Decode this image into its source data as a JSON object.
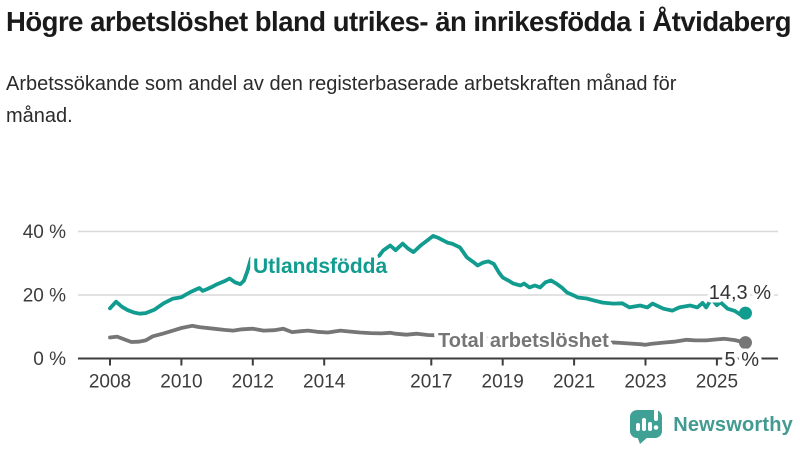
{
  "chart_data": {
    "type": "line",
    "title": "Högre arbetslöshet bland utrikes- än inrikesfödda i Åtvidaberg",
    "subtitle": "Arbetssökande som andel av den registerbaserade arbetskraften månad för månad.",
    "x": {
      "ticks": [
        2008,
        2010,
        2012,
        2014,
        2017,
        2019,
        2021,
        2023,
        2025
      ],
      "range": [
        2007.1,
        2026.7
      ],
      "unit": "year"
    },
    "y": {
      "ticks": [
        0,
        20,
        40
      ],
      "tick_labels": [
        "0 %",
        "20 %",
        "40 %"
      ],
      "range": [
        0,
        44
      ],
      "grid": true,
      "unit": "percent"
    },
    "legend_position": "inline-series-labels",
    "series": [
      {
        "name": "Utlandsfödda",
        "color": "#119c8f",
        "end_label": "14,3 %",
        "end_value": 14.3,
        "points": [
          [
            2008.0,
            15.8
          ],
          [
            2008.17,
            17.9
          ],
          [
            2008.33,
            16.3
          ],
          [
            2008.5,
            15.2
          ],
          [
            2008.67,
            14.5
          ],
          [
            2008.83,
            14.1
          ],
          [
            2009.0,
            14.3
          ],
          [
            2009.25,
            15.4
          ],
          [
            2009.5,
            17.4
          ],
          [
            2009.75,
            18.8
          ],
          [
            2010.0,
            19.3
          ],
          [
            2010.25,
            20.9
          ],
          [
            2010.5,
            22.2
          ],
          [
            2010.6,
            21.3
          ],
          [
            2010.75,
            22.0
          ],
          [
            2010.9,
            22.8
          ],
          [
            2011.0,
            23.4
          ],
          [
            2011.2,
            24.3
          ],
          [
            2011.35,
            25.2
          ],
          [
            2011.5,
            24.0
          ],
          [
            2011.65,
            23.4
          ],
          [
            2011.75,
            24.5
          ],
          [
            2011.85,
            27.5
          ],
          [
            2011.95,
            31.5
          ],
          [
            2012.1,
            31.4
          ],
          [
            2012.3,
            30.3
          ],
          [
            2012.5,
            29.4
          ],
          [
            2012.7,
            30.1
          ],
          [
            2012.9,
            30.9
          ],
          [
            2013.1,
            30.2
          ],
          [
            2013.3,
            29.2
          ],
          [
            2013.5,
            28.7
          ],
          [
            2013.7,
            29.4
          ],
          [
            2013.9,
            30.1
          ],
          [
            2014.1,
            29.5
          ],
          [
            2014.3,
            28.9
          ],
          [
            2014.5,
            29.6
          ],
          [
            2014.7,
            30.3
          ],
          [
            2014.9,
            29.8
          ],
          [
            2015.1,
            30.4
          ],
          [
            2015.3,
            31.0
          ],
          [
            2015.5,
            31.8
          ],
          [
            2015.65,
            34.0
          ],
          [
            2015.85,
            35.6
          ],
          [
            2016.0,
            34.1
          ],
          [
            2016.2,
            36.2
          ],
          [
            2016.35,
            34.6
          ],
          [
            2016.5,
            33.5
          ],
          [
            2016.7,
            35.6
          ],
          [
            2016.9,
            37.3
          ],
          [
            2017.05,
            38.6
          ],
          [
            2017.2,
            38.0
          ],
          [
            2017.45,
            36.5
          ],
          [
            2017.6,
            36.1
          ],
          [
            2017.8,
            35.0
          ],
          [
            2018.0,
            31.8
          ],
          [
            2018.2,
            30.2
          ],
          [
            2018.3,
            29.3
          ],
          [
            2018.45,
            30.2
          ],
          [
            2018.6,
            30.6
          ],
          [
            2018.75,
            29.8
          ],
          [
            2018.9,
            27.0
          ],
          [
            2019.0,
            25.5
          ],
          [
            2019.15,
            24.6
          ],
          [
            2019.3,
            23.6
          ],
          [
            2019.5,
            23.0
          ],
          [
            2019.6,
            23.6
          ],
          [
            2019.75,
            22.4
          ],
          [
            2019.9,
            23.0
          ],
          [
            2020.05,
            22.4
          ],
          [
            2020.2,
            24.0
          ],
          [
            2020.35,
            24.6
          ],
          [
            2020.5,
            23.6
          ],
          [
            2020.65,
            22.4
          ],
          [
            2020.8,
            20.8
          ],
          [
            2021.0,
            19.8
          ],
          [
            2021.1,
            19.2
          ],
          [
            2021.35,
            18.9
          ],
          [
            2021.55,
            18.3
          ],
          [
            2021.8,
            17.6
          ],
          [
            2022.1,
            17.3
          ],
          [
            2022.35,
            17.4
          ],
          [
            2022.55,
            16.1
          ],
          [
            2022.85,
            16.7
          ],
          [
            2023.05,
            16.1
          ],
          [
            2023.2,
            17.3
          ],
          [
            2023.5,
            15.7
          ],
          [
            2023.75,
            15.1
          ],
          [
            2023.95,
            16.1
          ],
          [
            2024.25,
            16.7
          ],
          [
            2024.45,
            16.1
          ],
          [
            2024.6,
            17.5
          ],
          [
            2024.7,
            16.1
          ],
          [
            2024.85,
            18.8
          ],
          [
            2025.0,
            16.8
          ],
          [
            2025.1,
            17.7
          ],
          [
            2025.3,
            15.7
          ],
          [
            2025.5,
            15.0
          ],
          [
            2025.65,
            13.9
          ],
          [
            2025.8,
            14.3
          ]
        ]
      },
      {
        "name": "Total arbetslöshet",
        "color": "#767676",
        "end_label": "5 %",
        "end_value": 5.0,
        "points": [
          [
            2008.0,
            6.6
          ],
          [
            2008.2,
            6.9
          ],
          [
            2008.4,
            6.0
          ],
          [
            2008.6,
            5.2
          ],
          [
            2008.8,
            5.3
          ],
          [
            2009.0,
            5.7
          ],
          [
            2009.2,
            7.0
          ],
          [
            2009.5,
            7.9
          ],
          [
            2009.8,
            8.9
          ],
          [
            2010.0,
            9.6
          ],
          [
            2010.3,
            10.3
          ],
          [
            2010.5,
            9.9
          ],
          [
            2010.9,
            9.4
          ],
          [
            2011.2,
            9.0
          ],
          [
            2011.45,
            8.8
          ],
          [
            2011.7,
            9.2
          ],
          [
            2012.0,
            9.4
          ],
          [
            2012.3,
            8.8
          ],
          [
            2012.6,
            8.9
          ],
          [
            2012.85,
            9.4
          ],
          [
            2013.1,
            8.3
          ],
          [
            2013.35,
            8.6
          ],
          [
            2013.55,
            8.8
          ],
          [
            2013.8,
            8.4
          ],
          [
            2014.1,
            8.2
          ],
          [
            2014.45,
            8.8
          ],
          [
            2014.7,
            8.5
          ],
          [
            2015.0,
            8.2
          ],
          [
            2015.3,
            8.0
          ],
          [
            2015.6,
            7.9
          ],
          [
            2015.85,
            8.1
          ],
          [
            2016.0,
            7.8
          ],
          [
            2016.3,
            7.5
          ],
          [
            2016.6,
            7.8
          ],
          [
            2016.9,
            7.4
          ],
          [
            2017.15,
            7.3
          ],
          [
            2017.5,
            7.0
          ],
          [
            2018.0,
            6.6
          ],
          [
            2018.5,
            6.3
          ],
          [
            2019.0,
            6.0
          ],
          [
            2019.5,
            5.8
          ],
          [
            2020.0,
            6.0
          ],
          [
            2020.4,
            6.6
          ],
          [
            2020.8,
            6.4
          ],
          [
            2021.0,
            6.1
          ],
          [
            2021.5,
            5.6
          ],
          [
            2022.0,
            5.1
          ],
          [
            2022.3,
            4.9
          ],
          [
            2022.6,
            4.7
          ],
          [
            2022.85,
            4.5
          ],
          [
            2023.0,
            4.3
          ],
          [
            2023.15,
            4.6
          ],
          [
            2023.5,
            5.0
          ],
          [
            2023.8,
            5.3
          ],
          [
            2024.15,
            5.9
          ],
          [
            2024.4,
            5.7
          ],
          [
            2024.7,
            5.7
          ],
          [
            2025.0,
            6.0
          ],
          [
            2025.2,
            6.2
          ],
          [
            2025.5,
            5.8
          ],
          [
            2025.8,
            5.0
          ]
        ]
      }
    ]
  },
  "branding": {
    "logo_text": "Newsworthy",
    "logo_icon": "bar-chart-speech-bubble-icon"
  },
  "colors": {
    "accent_teal": "#119c8f",
    "series_gray": "#767676",
    "brand_teal": "#429a91",
    "axis": "#3d3d3d",
    "grid": "#d9d9d9",
    "title_text": "#1a1a1a",
    "value_label_text": "#333333"
  }
}
